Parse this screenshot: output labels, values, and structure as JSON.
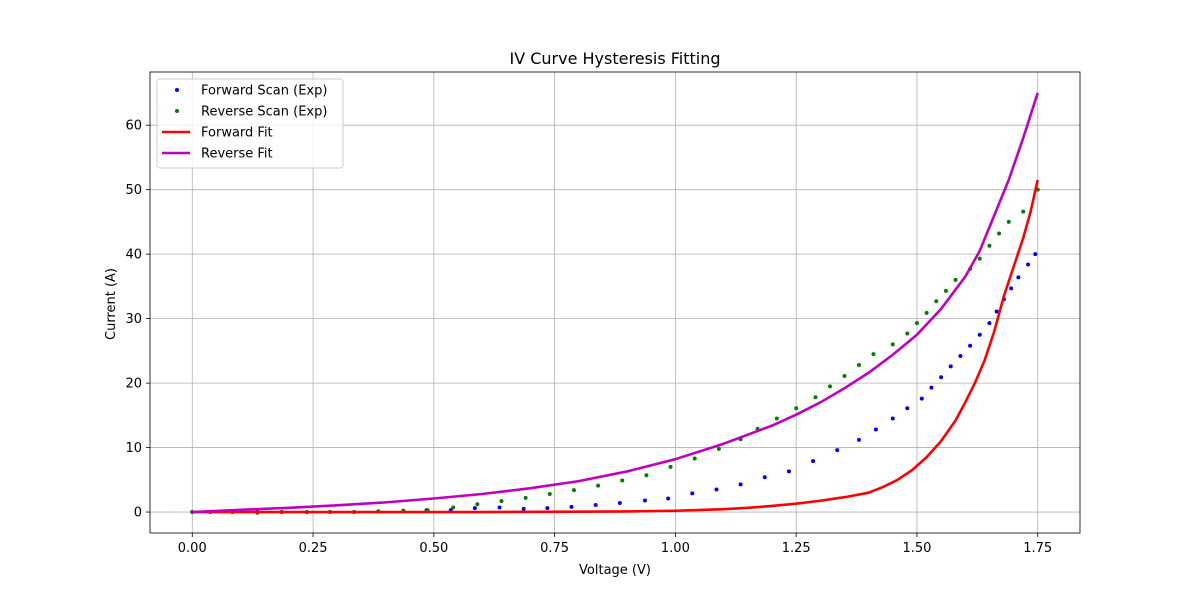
{
  "chart_data": {
    "type": "line",
    "title": "IV Curve Hysteresis Fitting",
    "xlabel": "Voltage (V)",
    "ylabel": "Current (A)",
    "xlim": [
      -0.0875,
      1.8375
    ],
    "ylim": [
      -3.25,
      68.25
    ],
    "xticks": [
      0.0,
      0.25,
      0.5,
      0.75,
      1.0,
      1.25,
      1.5,
      1.75
    ],
    "xtick_labels": [
      "0.00",
      "0.25",
      "0.50",
      "0.75",
      "1.00",
      "1.25",
      "1.50",
      "1.75"
    ],
    "yticks": [
      0,
      10,
      20,
      30,
      40,
      50,
      60
    ],
    "ytick_labels": [
      "0",
      "10",
      "20",
      "30",
      "40",
      "50",
      "60"
    ],
    "grid": true,
    "legend_position": "upper-left",
    "series": [
      {
        "name": "Forward Scan (Exp)",
        "kind": "scatter",
        "color": "#0000ff",
        "x": [
          0.0,
          0.037,
          0.083,
          0.135,
          0.185,
          0.237,
          0.285,
          0.335,
          0.385,
          0.437,
          0.485,
          0.535,
          0.585,
          0.636,
          0.686,
          0.735,
          0.785,
          0.835,
          0.885,
          0.937,
          0.985,
          1.035,
          1.085,
          1.135,
          1.185,
          1.235,
          1.285,
          1.335,
          1.38,
          1.415,
          1.45,
          1.48,
          1.51,
          1.53,
          1.55,
          1.57,
          1.59,
          1.61,
          1.63,
          1.65,
          1.665,
          1.68,
          1.695,
          1.71,
          1.73,
          1.745
        ],
        "y": [
          0.0,
          0.0,
          0.0,
          0.0,
          0.0,
          0.0,
          0.0,
          0.0,
          0.1,
          0.2,
          0.3,
          0.3,
          0.6,
          0.7,
          0.5,
          0.6,
          0.8,
          1.1,
          1.4,
          1.8,
          2.1,
          2.9,
          3.5,
          4.3,
          5.4,
          6.3,
          7.9,
          9.6,
          11.2,
          12.8,
          14.5,
          16.1,
          17.6,
          19.3,
          20.9,
          22.6,
          24.2,
          25.8,
          27.5,
          29.3,
          31.1,
          33.0,
          34.7,
          36.4,
          38.4,
          40.0
        ]
      },
      {
        "name": "Reverse Scan (Exp)",
        "kind": "scatter",
        "color": "#008000",
        "x": [
          0.0,
          0.037,
          0.083,
          0.135,
          0.185,
          0.237,
          0.285,
          0.335,
          0.385,
          0.437,
          0.487,
          0.54,
          0.59,
          0.64,
          0.69,
          0.74,
          0.79,
          0.84,
          0.89,
          0.94,
          0.99,
          1.04,
          1.09,
          1.135,
          1.17,
          1.21,
          1.25,
          1.29,
          1.32,
          1.35,
          1.38,
          1.41,
          1.45,
          1.48,
          1.5,
          1.52,
          1.54,
          1.56,
          1.58,
          1.61,
          1.63,
          1.65,
          1.67,
          1.69,
          1.72,
          1.75
        ],
        "y": [
          0.0,
          0.0,
          0.0,
          -0.1,
          0.0,
          0.0,
          0.0,
          0.0,
          0.1,
          0.2,
          0.3,
          0.7,
          1.2,
          1.7,
          2.2,
          2.8,
          3.4,
          4.1,
          4.9,
          5.7,
          7.0,
          8.3,
          9.8,
          11.3,
          12.9,
          14.5,
          16.1,
          17.8,
          19.5,
          21.1,
          22.8,
          24.5,
          26.0,
          27.7,
          29.3,
          30.9,
          32.7,
          34.3,
          36.0,
          37.7,
          39.3,
          41.3,
          43.2,
          45.0,
          46.6,
          50.0
        ]
      },
      {
        "name": "Forward Fit",
        "kind": "line",
        "color": "#ff0000",
        "x": [
          0.0,
          0.2,
          0.4,
          0.6,
          0.8,
          0.9,
          1.0,
          1.1,
          1.15,
          1.2,
          1.25,
          1.3,
          1.35,
          1.4,
          1.43,
          1.46,
          1.49,
          1.52,
          1.55,
          1.58,
          1.6,
          1.62,
          1.64,
          1.66,
          1.68,
          1.7,
          1.72,
          1.735,
          1.75
        ],
        "y": [
          0.0,
          0.0,
          0.0,
          0.0,
          0.05,
          0.1,
          0.2,
          0.45,
          0.65,
          0.95,
          1.3,
          1.75,
          2.3,
          3.0,
          3.9,
          5.0,
          6.5,
          8.5,
          11.0,
          14.2,
          17.0,
          20.0,
          23.5,
          28.0,
          33.5,
          38.0,
          42.5,
          46.5,
          51.5
        ]
      },
      {
        "name": "Reverse Fit",
        "kind": "line",
        "color": "#bf00bf",
        "x": [
          0.0,
          0.1,
          0.2,
          0.3,
          0.4,
          0.5,
          0.6,
          0.7,
          0.8,
          0.9,
          1.0,
          1.1,
          1.2,
          1.25,
          1.3,
          1.35,
          1.4,
          1.45,
          1.5,
          1.55,
          1.6,
          1.63,
          1.66,
          1.69,
          1.72,
          1.75
        ],
        "y": [
          0.0,
          0.35,
          0.65,
          1.05,
          1.5,
          2.1,
          2.8,
          3.7,
          4.8,
          6.3,
          8.2,
          10.6,
          13.4,
          15.1,
          17.0,
          19.2,
          21.6,
          24.4,
          27.5,
          31.5,
          36.5,
          40.5,
          46.0,
          51.5,
          58.0,
          65.0
        ]
      }
    ]
  }
}
